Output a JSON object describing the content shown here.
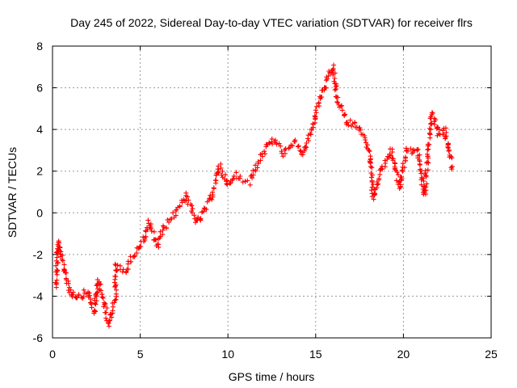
{
  "chart_data": {
    "type": "scatter",
    "title": "Day 245 of 2022, Sidereal Day-to-day VTEC variation (SDTVAR) for receiver flrs",
    "xlabel": "GPS time / hours",
    "ylabel": "SDTVAR / TECUs",
    "xlim": [
      0,
      25
    ],
    "ylim": [
      -6,
      8
    ],
    "xticks": [
      0,
      5,
      10,
      15,
      20,
      25
    ],
    "yticks": [
      -6,
      -4,
      -2,
      0,
      2,
      4,
      6,
      8
    ],
    "grid": true,
    "legend": "none",
    "marker": "+",
    "color": "#ff0000",
    "series": [
      {
        "name": "SDTVAR",
        "trend": [
          [
            0.2,
            -3.5
          ],
          [
            0.3,
            -1.4
          ],
          [
            0.6,
            -2.4
          ],
          [
            1.0,
            -3.8
          ],
          [
            1.5,
            -4.0
          ],
          [
            2.0,
            -3.8
          ],
          [
            2.4,
            -4.8
          ],
          [
            2.6,
            -3.2
          ],
          [
            3.2,
            -5.3
          ],
          [
            3.6,
            -4.0
          ],
          [
            3.6,
            -2.5
          ],
          [
            4.2,
            -2.8
          ],
          [
            4.6,
            -2.0
          ],
          [
            5.1,
            -1.5
          ],
          [
            5.5,
            -0.5
          ],
          [
            6.0,
            -1.6
          ],
          [
            6.3,
            -0.8
          ],
          [
            7.0,
            0.0
          ],
          [
            7.6,
            0.9
          ],
          [
            8.2,
            -0.5
          ],
          [
            8.6,
            0.0
          ],
          [
            9.1,
            0.8
          ],
          [
            9.5,
            2.3
          ],
          [
            10.0,
            1.3
          ],
          [
            10.5,
            1.8
          ],
          [
            11.2,
            1.5
          ],
          [
            11.8,
            2.6
          ],
          [
            12.2,
            3.2
          ],
          [
            12.6,
            3.5
          ],
          [
            13.2,
            2.8
          ],
          [
            13.8,
            3.4
          ],
          [
            14.3,
            2.8
          ],
          [
            14.8,
            4.0
          ],
          [
            15.3,
            5.6
          ],
          [
            15.6,
            6.2
          ],
          [
            16.0,
            7.0
          ],
          [
            16.2,
            5.5
          ],
          [
            16.8,
            4.3
          ],
          [
            17.4,
            4.2
          ],
          [
            18.0,
            3.2
          ],
          [
            18.3,
            0.7
          ],
          [
            18.7,
            2.0
          ],
          [
            19.3,
            3.0
          ],
          [
            19.8,
            1.2
          ],
          [
            20.2,
            3.0
          ],
          [
            20.8,
            3.0
          ],
          [
            21.2,
            0.8
          ],
          [
            21.6,
            4.8
          ],
          [
            22.0,
            3.8
          ],
          [
            22.4,
            3.9
          ],
          [
            22.8,
            2.1
          ]
        ]
      }
    ]
  }
}
